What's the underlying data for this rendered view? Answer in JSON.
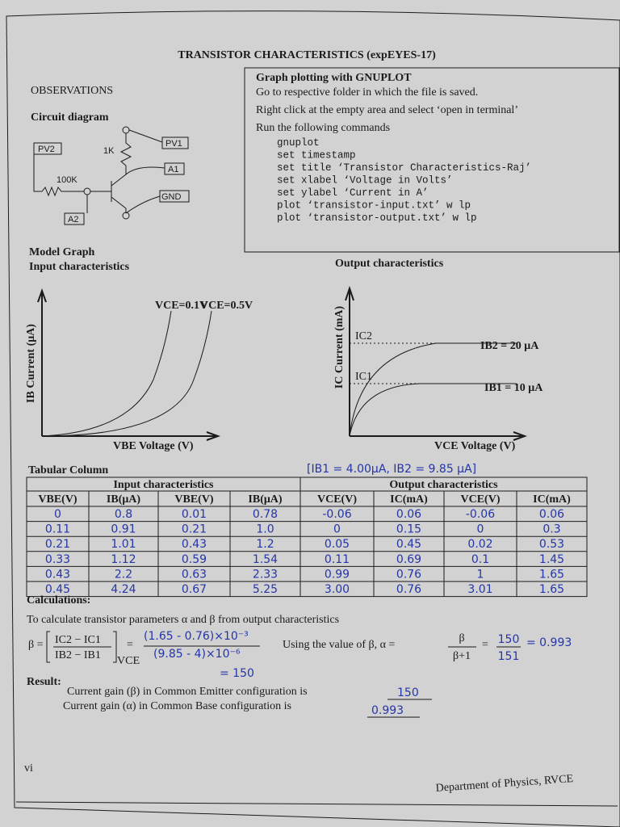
{
  "header": {
    "title": "TRANSISTOR CHARACTERISTICS (expEYES-17)"
  },
  "observations": "OBSERVATIONS",
  "circuit": {
    "heading": "Circuit diagram",
    "labels": {
      "pv2": "PV2",
      "r1": "1K",
      "pv1": "PV1",
      "a1": "A1",
      "r2": "100K",
      "gnd": "GND",
      "a2": "A2"
    }
  },
  "gnuplot": {
    "heading": "Graph plotting with GNUPLOT",
    "steps": [
      "Go to respective folder in which the file is saved.",
      "Right click at the empty area and select ‘open in terminal’",
      "Run the following commands"
    ],
    "commands": [
      "gnuplot",
      "set timestamp",
      "set title ‘Transistor Characteristics-Raj’",
      "set xlabel ‘Voltage in Volts’",
      "set ylabel ‘Current in  A’",
      "plot ‘transistor-input.txt’ w lp",
      "plot ‘transistor-output.txt’ w lp"
    ]
  },
  "model_graph": {
    "heading": "Model Graph",
    "input": {
      "title": "Input characteristics",
      "y_label": "IB Current (μA)",
      "x_label": "VBE Voltage (V)",
      "curves": [
        "VCE=0.1V",
        "VCE=0.5V"
      ]
    },
    "output": {
      "title": "Output characteristics",
      "y_label": "IC Current (mA)",
      "x_label": "VCE Voltage (V)",
      "levels": [
        "IC2",
        "IC1"
      ],
      "curves": [
        "IB2 = 20 μA",
        "IB1 = 10 μA"
      ]
    }
  },
  "table": {
    "heading": "Tabular Column",
    "note": "[IB1 = 4.00μA, IB2 = 9.85 μA]",
    "groups": [
      "Input characteristics",
      "Output characteristics"
    ],
    "columns": [
      "VBE(V)",
      "IB(μA)",
      "VBE(V)",
      "IB(μA)",
      "VCE(V)",
      "IC(mA)",
      "VCE(V)",
      "IC(mA)"
    ],
    "rows": [
      [
        "0",
        "0.8",
        "0.01",
        "0.78",
        "-0.06",
        "0.06",
        "-0.06",
        "0.06"
      ],
      [
        "0.11",
        "0.91",
        "0.21",
        "1.0",
        "0",
        "0.15",
        "0",
        "0.3"
      ],
      [
        "0.21",
        "1.01",
        "0.43",
        "1.2",
        "0.05",
        "0.45",
        "0.02",
        "0.53"
      ],
      [
        "0.33",
        "1.12",
        "0.59",
        "1.54",
        "0.11",
        "0.69",
        "0.1",
        "1.45"
      ],
      [
        "0.43",
        "2.2",
        "0.63",
        "2.33",
        "0.99",
        "0.76",
        "1",
        "1.65"
      ],
      [
        "0.45",
        "4.24",
        "0.67",
        "5.25",
        "3.00",
        "0.76",
        "3.01",
        "1.65"
      ]
    ]
  },
  "calculations": {
    "heading": "Calculations:",
    "intro": "To calculate transistor parameters α and β from output characteristics",
    "beta_lhs": "β =",
    "beta_num": "IC2 − IC1",
    "beta_den": "IB2 − IB1",
    "beta_sub": "VCE",
    "eq1": "=",
    "hand_num": "(1.65 - 0.76)×10⁻³",
    "hand_den": "(9.85 - 4)×10⁻⁶",
    "hand_result": "= 150",
    "alpha_text": "Using the value of β,  α =",
    "alpha_num": "β",
    "alpha_den": "β+1",
    "eq2": "=",
    "hand_alpha_num": "150",
    "hand_alpha_den": "151",
    "hand_alpha": "= 0.993"
  },
  "result": {
    "label": "Result:",
    "line1": "Current gain (β) in Common Emitter configuration is",
    "beta": "150",
    "line2": "Current gain (α) in Common Base configuration is",
    "alpha": "0.993"
  },
  "footer": {
    "page": "vi",
    "department": "Department of Physics, RVCE"
  }
}
